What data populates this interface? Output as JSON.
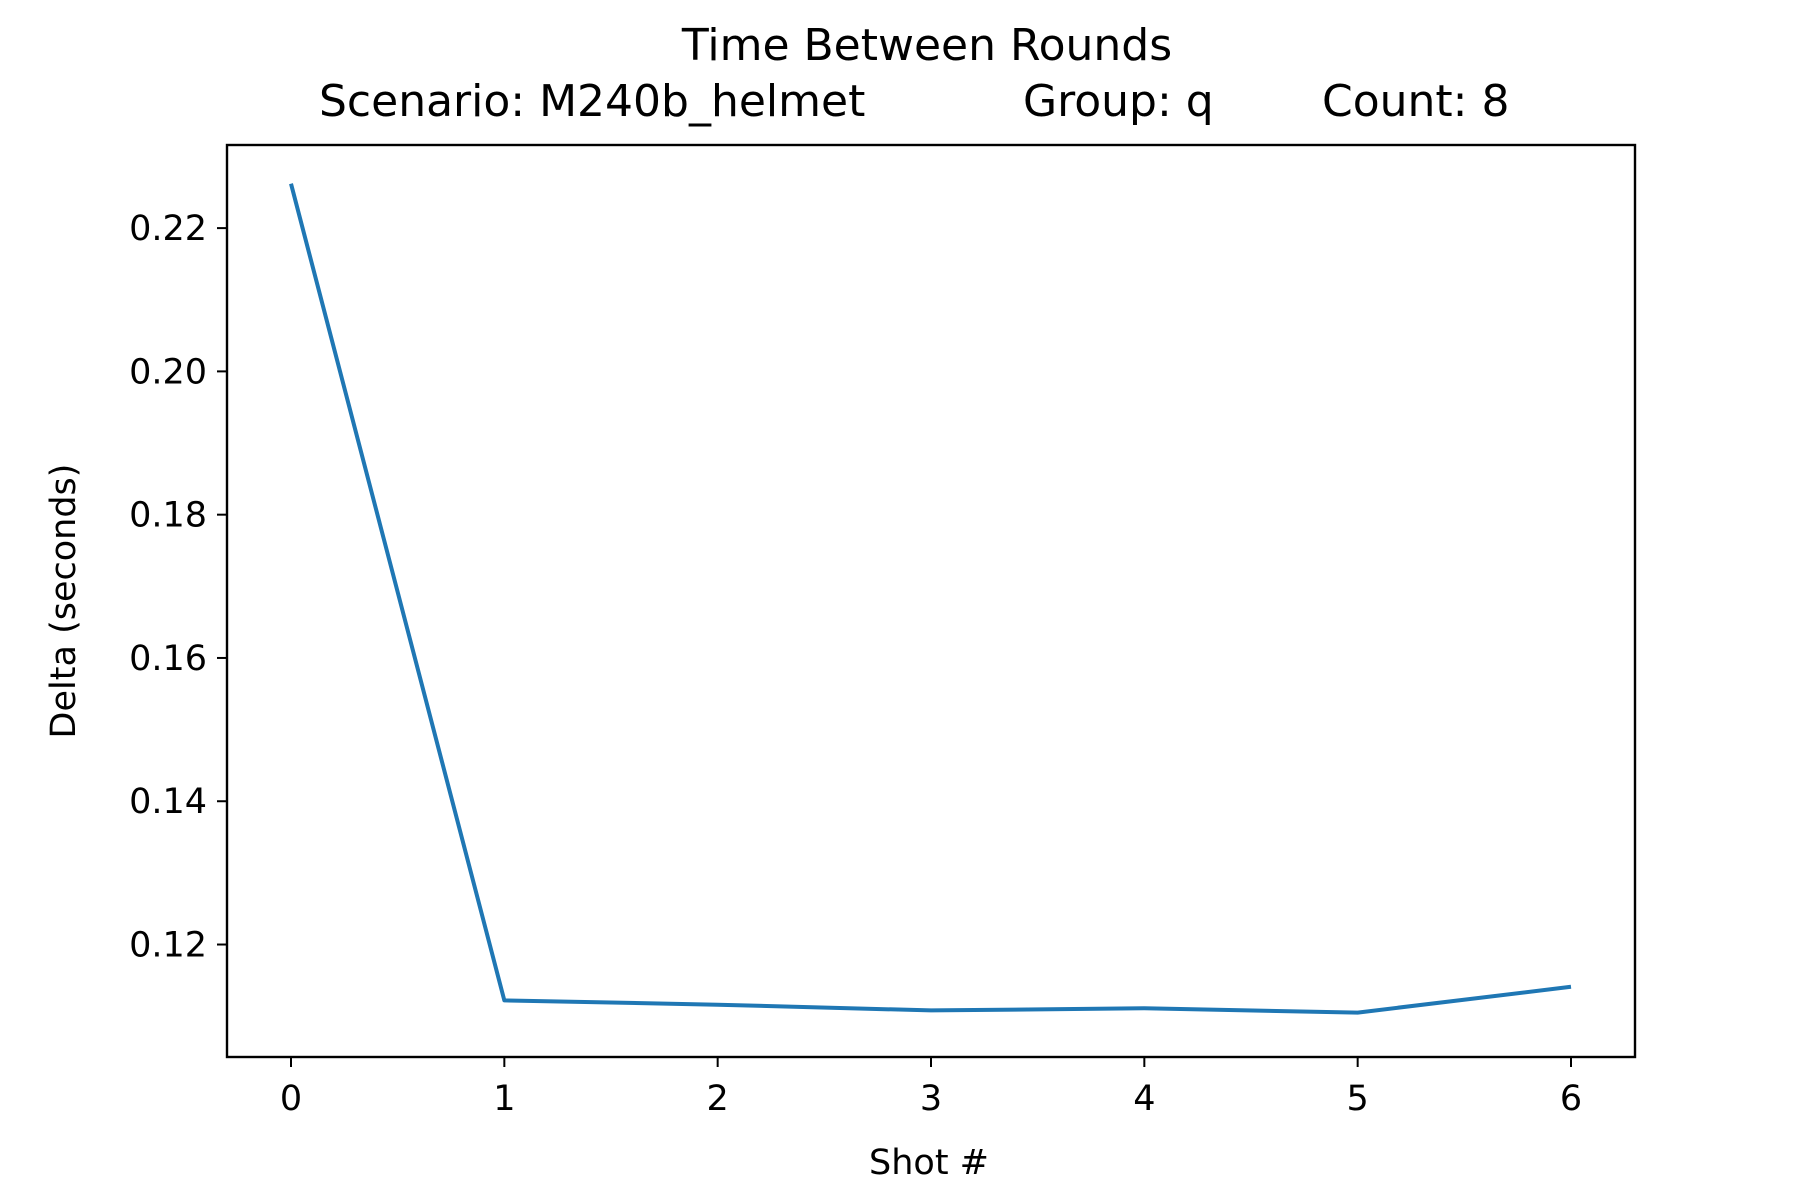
{
  "chart_data": {
    "type": "line",
    "title": "Time Between Rounds",
    "subtitle": {
      "scenario": "Scenario: M240b_helmet",
      "group": "Group: q",
      "count": "Count: 8"
    },
    "xlabel": "Shot #",
    "ylabel": "Delta (seconds)",
    "x": [
      0,
      1,
      2,
      3,
      4,
      5,
      6
    ],
    "series": [
      {
        "color": "#1f77b4",
        "values": [
          0.2262,
          0.1122,
          0.1116,
          0.1108,
          0.1111,
          0.1105,
          0.1141
        ]
      }
    ],
    "xlim": [
      -0.3,
      6.3
    ],
    "ylim": [
      0.1043,
      0.2316
    ],
    "xticks": [
      0,
      1,
      2,
      3,
      4,
      5,
      6
    ],
    "xtick_labels": [
      "0",
      "1",
      "2",
      "3",
      "4",
      "5",
      "6"
    ],
    "yticks": [
      0.12,
      0.14,
      0.16,
      0.18,
      0.2,
      0.22
    ],
    "ytick_labels": [
      "0.12",
      "0.14",
      "0.16",
      "0.18",
      "0.20",
      "0.22"
    ],
    "grid": false,
    "legend": "none"
  }
}
